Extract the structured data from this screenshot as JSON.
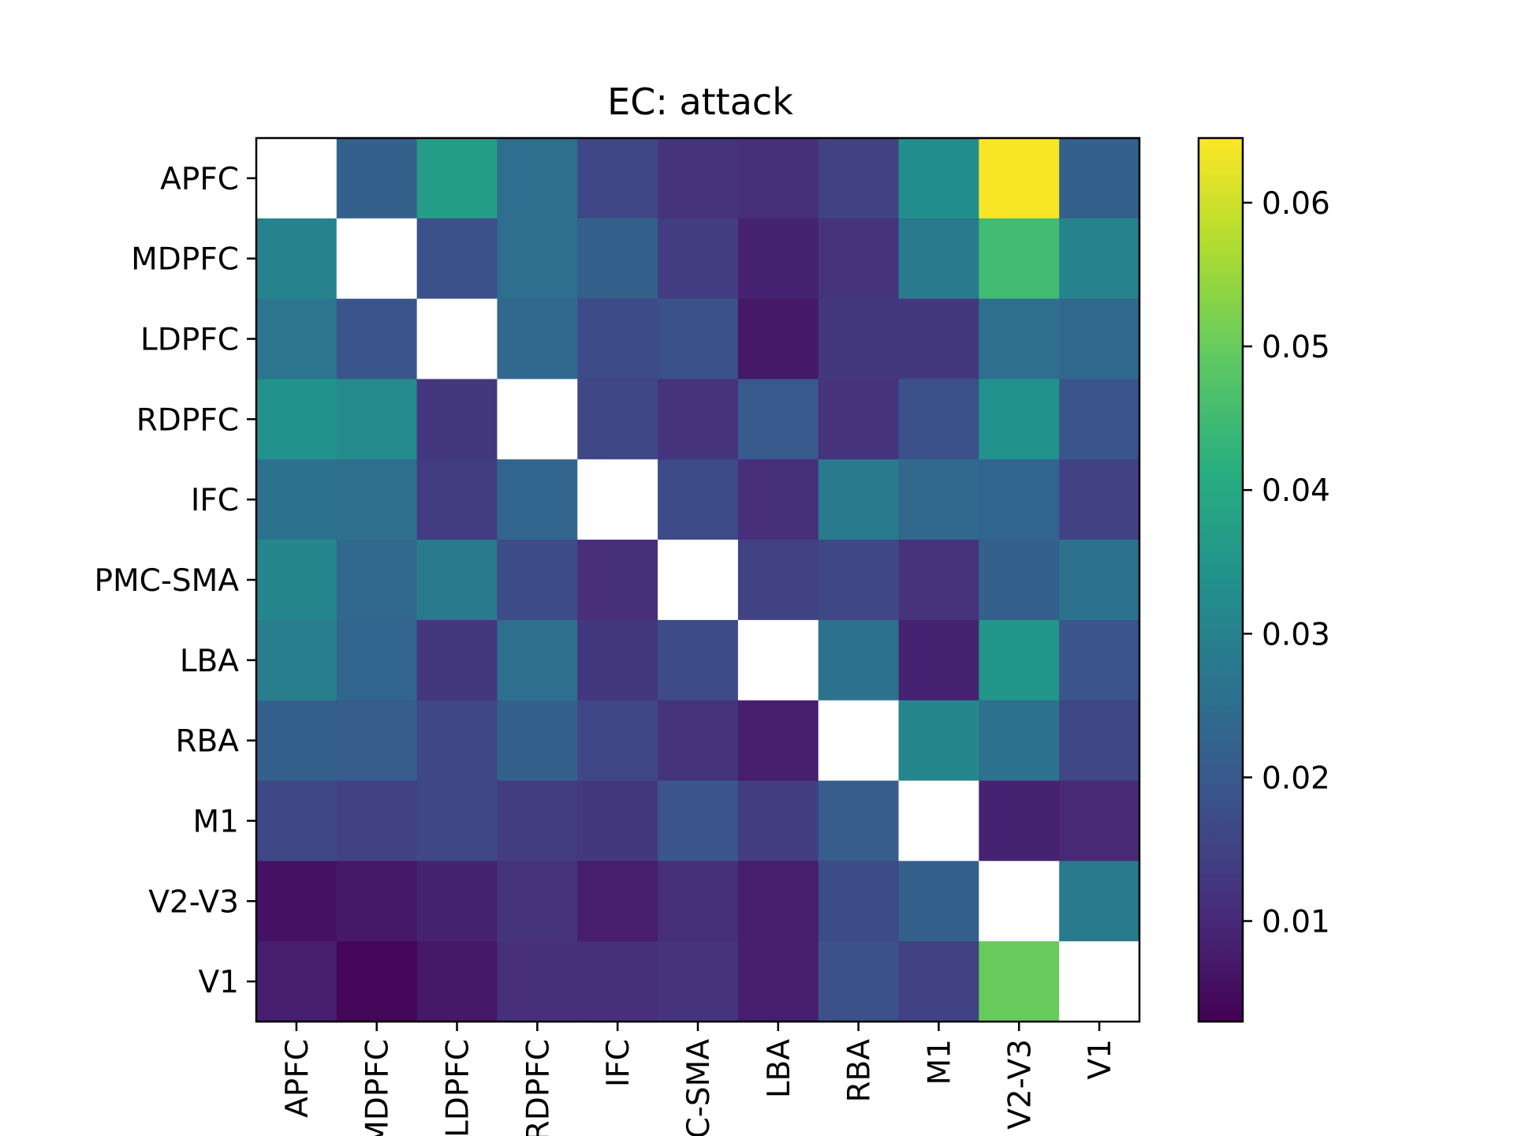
{
  "chart_data": {
    "type": "heatmap",
    "title": "EC: attack",
    "xlabel": "",
    "ylabel": "",
    "rows": [
      "APFC",
      "MDPFC",
      "LDPFC",
      "RDPFC",
      "IFC",
      "PMC-SMA",
      "LBA",
      "RBA",
      "M1",
      "V2-V3",
      "V1"
    ],
    "cols": [
      "APFC",
      "MDPFC",
      "LDPFC",
      "RDPFC",
      "IFC",
      "PMC-SMA",
      "LBA",
      "RBA",
      "M1",
      "V2-V3",
      "V1"
    ],
    "x_tick_labels_shown": [
      "APFC",
      "MDPFC",
      "LDPFC",
      "RDPFC",
      "IFC",
      "C-SMA",
      "LBA",
      "RBA",
      "M1",
      "V2-V3",
      "V1"
    ],
    "values": [
      [
        null,
        0.022,
        0.037,
        0.025,
        0.016,
        0.012,
        0.011,
        0.015,
        0.033,
        0.064,
        0.022
      ],
      [
        0.03,
        null,
        0.018,
        0.025,
        0.022,
        0.014,
        0.009,
        0.012,
        0.028,
        0.045,
        0.03
      ],
      [
        0.027,
        0.019,
        null,
        0.024,
        0.017,
        0.018,
        0.007,
        0.013,
        0.013,
        0.025,
        0.024
      ],
      [
        0.034,
        0.032,
        0.013,
        null,
        0.016,
        0.012,
        0.02,
        0.012,
        0.018,
        0.034,
        0.019
      ],
      [
        0.026,
        0.025,
        0.014,
        0.023,
        null,
        0.017,
        0.011,
        0.028,
        0.024,
        0.023,
        0.015
      ],
      [
        0.031,
        0.024,
        0.028,
        0.017,
        0.011,
        null,
        0.015,
        0.016,
        0.012,
        0.022,
        0.026
      ],
      [
        0.029,
        0.023,
        0.013,
        0.025,
        0.013,
        0.017,
        null,
        0.026,
        0.009,
        0.035,
        0.019
      ],
      [
        0.022,
        0.021,
        0.016,
        0.022,
        0.016,
        0.012,
        0.008,
        null,
        0.031,
        0.026,
        0.016
      ],
      [
        0.016,
        0.015,
        0.016,
        0.014,
        0.013,
        0.019,
        0.014,
        0.021,
        null,
        0.009,
        0.01
      ],
      [
        0.006,
        0.007,
        0.009,
        0.012,
        0.008,
        0.011,
        0.008,
        0.017,
        0.022,
        null,
        0.028
      ],
      [
        0.008,
        0.004,
        0.007,
        0.011,
        0.011,
        0.012,
        0.008,
        0.018,
        0.015,
        0.05,
        null
      ]
    ],
    "colormap": "viridis",
    "colorbar": {
      "vmin": 0.003,
      "vmax": 0.0645,
      "ticks": [
        0.01,
        0.02,
        0.03,
        0.04,
        0.05,
        0.06
      ],
      "tick_labels": [
        "0.01",
        "0.02",
        "0.03",
        "0.04",
        "0.05",
        "0.06"
      ]
    },
    "diagonal_color": "#ffffff",
    "grid": false
  }
}
